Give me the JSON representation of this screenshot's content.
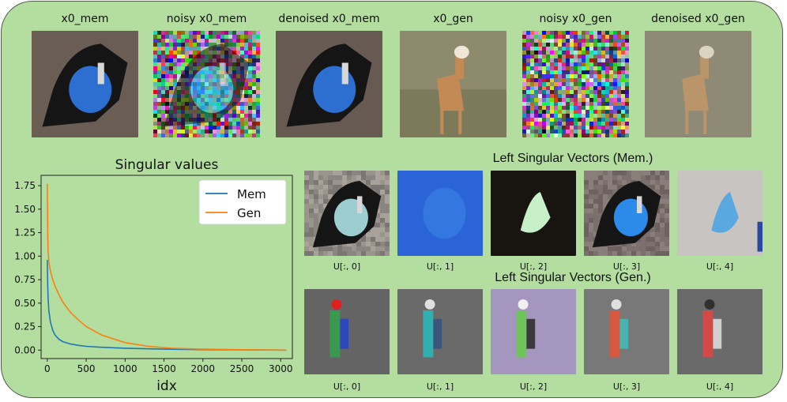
{
  "top_row": {
    "labels": [
      "x0_mem",
      "noisy x0_mem",
      "denoised x0_mem",
      "x0_gen",
      "noisy x0_gen",
      "denoised x0_gen"
    ],
    "images": [
      {
        "name": "x0-mem-image",
        "kind": "dog",
        "bg": "#6a5e54"
      },
      {
        "name": "noisy-x0-mem-image",
        "kind": "noise-dog",
        "bg": "#6d5f70"
      },
      {
        "name": "denoised-x0-mem-image",
        "kind": "dog",
        "bg": "#665a52"
      },
      {
        "name": "x0-gen-image",
        "kind": "deer",
        "bg": "#8d8a6e"
      },
      {
        "name": "noisy-x0-gen-image",
        "kind": "noise-deer",
        "bg": "#9b8a86"
      },
      {
        "name": "denoised-x0-gen-image",
        "kind": "deer-blur",
        "bg": "#8e8a76"
      }
    ]
  },
  "mem_vectors": {
    "title": "Left Singular Vectors (Mem.)",
    "captions": [
      "U[:, 0]",
      "U[:, 1]",
      "U[:, 2]",
      "U[:, 3]",
      "U[:, 4]"
    ],
    "images": [
      {
        "name": "mem-u0-image",
        "kind": "mem0",
        "bg": "#8c8a84"
      },
      {
        "name": "mem-u1-image",
        "kind": "mem1",
        "bg": "#2a64d6"
      },
      {
        "name": "mem-u2-image",
        "kind": "mem2",
        "bg": "#181410"
      },
      {
        "name": "mem-u3-image",
        "kind": "mem3",
        "bg": "#7a7070"
      },
      {
        "name": "mem-u4-image",
        "kind": "mem4",
        "bg": "#c8c4c2"
      }
    ]
  },
  "gen_vectors": {
    "title": "Left Singular Vectors (Gen.)",
    "captions": [
      "U[:, 0]",
      "U[:, 1]",
      "U[:, 2]",
      "U[:, 3]",
      "U[:, 4]"
    ],
    "images": [
      {
        "name": "gen-u0-image",
        "kind": "gen0",
        "bg": "#646464"
      },
      {
        "name": "gen-u1-image",
        "kind": "gen1",
        "bg": "#6a6a6a"
      },
      {
        "name": "gen-u2-image",
        "kind": "gen2",
        "bg": "#a596bf"
      },
      {
        "name": "gen-u3-image",
        "kind": "gen3",
        "bg": "#787878"
      },
      {
        "name": "gen-u4-image",
        "kind": "gen4",
        "bg": "#6a6a6a"
      }
    ]
  },
  "chart_data": {
    "type": "line",
    "title": "Singular values",
    "xlabel": "idx",
    "ylabel": "",
    "xlim": [
      -80,
      3150
    ],
    "ylim": [
      -0.09,
      1.86
    ],
    "xticks": [
      0,
      500,
      1000,
      1500,
      2000,
      2500,
      3000
    ],
    "yticks": [
      0.0,
      0.25,
      0.5,
      0.75,
      1.0,
      1.25,
      1.5,
      1.75
    ],
    "ytick_labels": [
      "0.00",
      "0.25",
      "0.50",
      "0.75",
      "1.00",
      "1.25",
      "1.50",
      "1.75"
    ],
    "legend": "top-right",
    "grid": false,
    "series": [
      {
        "name": "Mem",
        "color": "#1f77b4",
        "x": [
          0,
          5,
          10,
          20,
          40,
          70,
          100,
          150,
          200,
          300,
          400,
          500,
          700,
          1000,
          1500,
          2000,
          3072
        ],
        "y": [
          0.96,
          0.68,
          0.55,
          0.42,
          0.3,
          0.21,
          0.16,
          0.115,
          0.09,
          0.065,
          0.05,
          0.04,
          0.03,
          0.02,
          0.01,
          0.005,
          0.0
        ]
      },
      {
        "name": "Gen",
        "color": "#ff7f0e",
        "x": [
          0,
          5,
          10,
          20,
          40,
          70,
          100,
          150,
          200,
          300,
          400,
          500,
          700,
          1000,
          1300,
          1600,
          2000,
          2500,
          3072
        ],
        "y": [
          1.77,
          1.25,
          1.06,
          0.94,
          0.84,
          0.75,
          0.68,
          0.59,
          0.51,
          0.4,
          0.32,
          0.25,
          0.16,
          0.08,
          0.04,
          0.02,
          0.01,
          0.004,
          0.0
        ]
      }
    ]
  }
}
